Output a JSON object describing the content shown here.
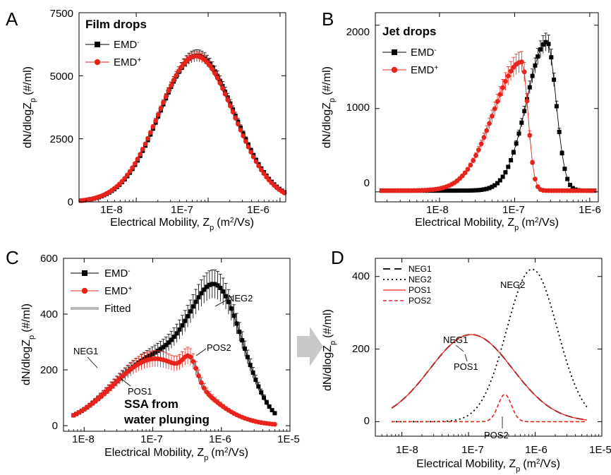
{
  "chart_data": [
    {
      "id": "A",
      "type": "scatter",
      "panel_label": "A",
      "inset_title": "Film drops",
      "xlabel": "Electrical Mobility, Z",
      "xlabel_sub": "p",
      "xlabel_unit": "(m",
      "xlabel_unit_sup": "2",
      "xlabel_unit_end": "/Vs)",
      "ylabel": "dN/dlogZ",
      "ylabel_sub": "p",
      "ylabel_unit": "(#/ml)",
      "x_scale": "log",
      "xlim": [
        1.6e-09,
        1.2e-06
      ],
      "ylim": [
        0,
        7500
      ],
      "x_ticks": [
        1e-08,
        1e-07,
        1e-06
      ],
      "x_tick_labels": [
        "1E-8",
        "1E-7",
        "1E-6"
      ],
      "y_ticks": [
        0,
        2500,
        5000,
        7500
      ],
      "y_tick_labels": [
        "0",
        "2500",
        "5000",
        "7500"
      ],
      "legend_position": "top-left",
      "series": [
        {
          "name": "EMD",
          "sup": "-",
          "color": "#000000",
          "marker": "square",
          "curve": "gauss",
          "peak": 5800,
          "center": 7e-08,
          "sigma": 0.52,
          "xrange": [
            1.7e-09,
            1.15e-06
          ],
          "n": 80,
          "err": 0.04
        },
        {
          "name": "EMD",
          "sup": "+",
          "color": "#e8231b",
          "marker": "circle",
          "curve": "gauss",
          "peak": 5780,
          "center": 6.8e-08,
          "sigma": 0.52,
          "xrange": [
            1.7e-09,
            1.15e-06
          ],
          "n": 80,
          "err": 0.03
        }
      ]
    },
    {
      "id": "B",
      "type": "scatter",
      "panel_label": "B",
      "inset_title": "Jet drops",
      "xlabel": "Electrical Mobility, Z",
      "xlabel_sub": "p",
      "xlabel_unit": "(m",
      "xlabel_unit_sup": "2",
      "xlabel_unit_end": "/Vs)",
      "ylabel": "dN/dlogZ",
      "ylabel_sub": "p",
      "ylabel_unit": "(#/ml)",
      "x_scale": "log",
      "xlim": [
        1.4e-09,
        1.3e-06
      ],
      "ylim": [
        -120,
        2150
      ],
      "x_ticks": [
        1e-08,
        1e-07,
        1e-06
      ],
      "x_tick_labels": [
        "1E-8",
        "1E-7",
        "1E-6"
      ],
      "y_ticks": [
        0,
        1000,
        2000
      ],
      "y_tick_labels": [
        "0",
        "1000",
        "2000"
      ],
      "legend_position": "top-left",
      "series": [
        {
          "name": "EMD",
          "sup": "-",
          "color": "#000000",
          "marker": "square",
          "curve": "skew",
          "peak": 1800,
          "center": 2.7e-07,
          "sigma_left": 0.27,
          "sigma_right": 0.12,
          "base": 15,
          "xrange": [
            1.7e-09,
            1.15e-06
          ],
          "n": 80,
          "err": 0.06
        },
        {
          "name": "EMD",
          "sup": "+",
          "color": "#e8231b",
          "marker": "circle",
          "curve": "skew",
          "peak": 1560,
          "center": 1.25e-07,
          "sigma_left": 0.38,
          "sigma_right": 0.08,
          "base": 15,
          "xrange": [
            1.7e-09,
            1.15e-06
          ],
          "n": 80,
          "err": 0.08
        }
      ]
    },
    {
      "id": "C",
      "type": "scatter",
      "panel_label": "C",
      "xlabel": "Electrical Mobility, Z",
      "xlabel_sub": "p",
      "xlabel_unit": "(m",
      "xlabel_unit_sup": "2",
      "xlabel_unit_end": "/Vs)",
      "ylabel": "dN/dlogZ",
      "ylabel_sub": "p",
      "ylabel_unit": "(#/ml)",
      "x_scale": "log",
      "xlim": [
        5e-09,
        1e-05
      ],
      "ylim": [
        -20,
        600
      ],
      "x_ticks": [
        1e-08,
        1e-07,
        1e-06,
        1e-05
      ],
      "x_tick_labels": [
        "1E-8",
        "1E-7",
        "1E-6",
        "1E-5"
      ],
      "y_ticks": [
        0,
        200,
        400,
        600
      ],
      "y_tick_labels": [
        "0",
        "200",
        "400",
        "600"
      ],
      "legend_position": "top-left",
      "annotations": [
        "NEG1",
        "NEG2",
        "POS1",
        "POS2"
      ],
      "inner_text": [
        "SSA from",
        "water plunging"
      ],
      "series": [
        {
          "name": "EMD",
          "sup": "-",
          "color": "#000000",
          "marker": "square",
          "curve": "sum",
          "components": [
            [
              240,
              1.1e-07,
              0.62
            ],
            [
              420,
              9e-07,
              0.38
            ]
          ],
          "xrange": [
            7e-09,
            6e-06
          ],
          "n": 75,
          "err": 0.1
        },
        {
          "name": "EMD",
          "sup": "+",
          "color": "#e8231b",
          "marker": "circle",
          "curve": "sum",
          "components": [
            [
              240,
              1.1e-07,
              0.62
            ],
            [
              75,
              3.5e-07,
              0.1
            ]
          ],
          "xrange": [
            7e-09,
            6e-06
          ],
          "n": 75,
          "err": 0.12
        },
        {
          "name": "Fitted",
          "color": "#b7b7b7",
          "marker": "none",
          "curve": "line",
          "width": 4
        }
      ]
    },
    {
      "id": "D",
      "type": "line",
      "panel_label": "D",
      "xlabel": "Electrical Mobility, Z",
      "xlabel_sub": "p",
      "xlabel_unit": "(m",
      "xlabel_unit_sup": "2",
      "xlabel_unit_end": "/Vs)",
      "ylabel": "dN/dlogZ",
      "ylabel_sub": "p",
      "ylabel_unit": "(#/ml)",
      "x_scale": "log",
      "xlim": [
        4e-09,
        1e-05
      ],
      "ylim": [
        -40,
        450
      ],
      "x_ticks": [
        1e-08,
        1e-07,
        1e-06,
        1e-05
      ],
      "x_tick_labels": [
        "1E-8",
        "1E-7",
        "1E-6",
        "1E-5"
      ],
      "y_ticks": [
        0,
        200,
        400
      ],
      "y_tick_labels": [
        "0",
        "200",
        "400"
      ],
      "legend_position": "top-left",
      "annotations": [
        "NEG1",
        "NEG2",
        "POS1",
        "POS2"
      ],
      "series": [
        {
          "name": "NEG1",
          "color": "#000000",
          "dash": "10,6",
          "width": 1.8,
          "curve": "gauss",
          "peak": 240,
          "center": 1.1e-07,
          "sigma": 0.62,
          "xrange": [
            7e-09,
            6e-06
          ]
        },
        {
          "name": "NEG2",
          "color": "#000000",
          "dash": "2,4",
          "width": 1.8,
          "curve": "gauss",
          "peak": 420,
          "center": 9e-07,
          "sigma": 0.38,
          "xrange": [
            7e-09,
            6e-06
          ]
        },
        {
          "name": "POS1",
          "color": "#e8231b",
          "dash": "",
          "width": 1.3,
          "curve": "gauss",
          "peak": 240,
          "center": 1.1e-07,
          "sigma": 0.62,
          "xrange": [
            7e-09,
            6e-06
          ]
        },
        {
          "name": "POS2",
          "color": "#e8231b",
          "dash": "5,3",
          "width": 1.6,
          "curve": "gauss",
          "peak": 75,
          "center": 3.5e-07,
          "sigma": 0.1,
          "xrange": [
            7e-09,
            6e-06
          ]
        }
      ]
    }
  ]
}
